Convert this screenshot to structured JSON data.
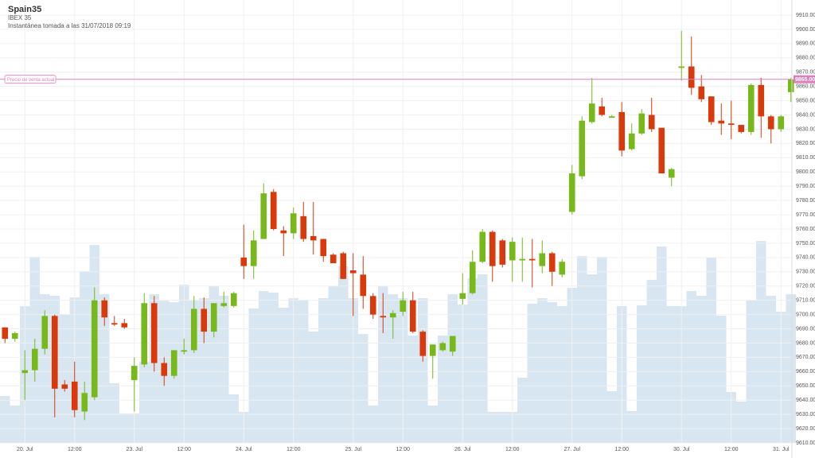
{
  "chart_data": {
    "type": "candlestick",
    "title": "Spain35",
    "subtitle": "IBEX 35",
    "note": "Instantánea tomada a las 31/07/2018 09:19",
    "categories": [
      null,
      null,
      "20. Jul",
      null,
      null,
      null,
      null,
      "12:00",
      null,
      null,
      null,
      null,
      null,
      "23. Jul",
      null,
      null,
      null,
      null,
      "12:00",
      null,
      null,
      null,
      null,
      null,
      "24. Jul",
      null,
      null,
      null,
      null,
      "12:00",
      null,
      null,
      null,
      null,
      null,
      "25. Jul",
      null,
      null,
      null,
      null,
      "12:00",
      null,
      null,
      null,
      null,
      null,
      "26. Jul",
      null,
      null,
      null,
      null,
      "12:00",
      null,
      null,
      null,
      null,
      null,
      "27. Jul",
      null,
      null,
      null,
      null,
      "12:00",
      null,
      null,
      null,
      null,
      null,
      "30. Jul",
      null,
      null,
      null,
      null,
      "12:00",
      null,
      null,
      null,
      null,
      "31. Jul",
      null
    ],
    "open": [
      9691,
      9683,
      9659,
      9661,
      9676,
      9699,
      9651,
      9653,
      9632,
      9642,
      9710,
      9694,
      9694,
      9654,
      9665,
      9708,
      9666,
      9657,
      9674,
      9675,
      9704,
      9688,
      9706,
      9706,
      9740,
      9734,
      9753,
      9786,
      9759,
      9757,
      9769,
      9755,
      9753,
      9742,
      9743,
      9731,
      9728,
      9713,
      9699,
      9698,
      9702,
      9710,
      9688,
      9671,
      9675,
      9674,
      9711,
      9715,
      9737,
      9758,
      9752,
      9738,
      9738,
      9739,
      9734,
      9743,
      9728,
      9772,
      9797,
      9835,
      9846,
      9838,
      9842,
      9816,
      9827,
      9840,
      9831,
      9796,
      9873,
      9874,
      9860,
      9853,
      9836,
      9834,
      9833,
      9828,
      9861,
      9839,
      9830,
      9856
    ],
    "high": [
      9691,
      9688,
      9675,
      9683,
      9703,
      9700,
      9654,
      9667,
      9653,
      9719,
      9712,
      9699,
      9697,
      9670,
      9715,
      9713,
      9670,
      9675,
      9683,
      9713,
      9712,
      9708,
      9716,
      9716,
      9763,
      9759,
      9792,
      9788,
      9762,
      9775,
      9779,
      9779,
      9753,
      9743,
      9744,
      9743,
      9741,
      9715,
      9715,
      9703,
      9716,
      9716,
      9689,
      9679,
      9681,
      9685,
      9729,
      9745,
      9760,
      9759,
      9753,
      9754,
      9754,
      9753,
      9752,
      9744,
      9739,
      9805,
      9839,
      9866,
      9852,
      9840,
      9849,
      9834,
      9844,
      9852,
      9831,
      9803,
      9899,
      9895,
      9868,
      9853,
      9848,
      9850,
      9833,
      9862,
      9866,
      9840,
      9840,
      9866
    ],
    "low": [
      9680,
      9681,
      9640,
      9653,
      9672,
      9628,
      9646,
      9628,
      9626,
      9640,
      9692,
      9692,
      9690,
      9632,
      9663,
      9660,
      9650,
      9655,
      9672,
      9673,
      9680,
      9684,
      9705,
      9705,
      9725,
      9725,
      9753,
      9759,
      9741,
      9753,
      9751,
      9742,
      9737,
      9736,
      9725,
      9699,
      9704,
      9697,
      9687,
      9683,
      9699,
      9687,
      9667,
      9655,
      9674,
      9671,
      9707,
      9714,
      9736,
      9723,
      9733,
      9723,
      9723,
      9719,
      9729,
      9720,
      9726,
      9770,
      9795,
      9834,
      9839,
      9838,
      9811,
      9815,
      9826,
      9828,
      9799,
      9790,
      9864,
      9854,
      9849,
      9833,
      9826,
      9823,
      9827,
      9826,
      9824,
      9820,
      9828,
      9849
    ],
    "close": [
      9683,
      9687,
      9661,
      9676,
      9699,
      9648,
      9648,
      9633,
      9645,
      9710,
      9698,
      9693,
      9691,
      9664,
      9708,
      9666,
      9657,
      9675,
      9675,
      9704,
      9688,
      9708,
      9708,
      9715,
      9734,
      9752,
      9785,
      9760,
      9757,
      9771,
      9753,
      9752,
      9741,
      9736,
      9725,
      9729,
      9713,
      9700,
      9698,
      9701,
      9710,
      9688,
      9671,
      9679,
      9680,
      9685,
      9715,
      9737,
      9758,
      9734,
      9735,
      9751,
      9739,
      9738,
      9743,
      9730,
      9737,
      9799,
      9836,
      9848,
      9840,
      9839,
      9815,
      9827,
      9841,
      9830,
      9799,
      9802,
      9874,
      9859,
      9851,
      9835,
      9834,
      9833,
      9828,
      9861,
      9839,
      9830,
      9839,
      9865
    ],
    "volume": [
      59,
      47,
      172,
      234,
      187,
      185,
      162,
      183,
      216,
      249,
      187,
      75,
      37,
      37,
      102,
      187,
      179,
      177,
      199,
      179,
      182,
      197,
      185,
      61,
      39,
      169,
      191,
      189,
      170,
      182,
      180,
      140,
      182,
      197,
      222,
      182,
      137,
      47,
      197,
      187,
      182,
      135,
      182,
      47,
      135,
      187,
      174,
      207,
      212,
      39,
      39,
      39,
      82,
      175,
      182,
      177,
      172,
      195,
      235,
      212,
      234,
      65,
      172,
      40,
      173,
      205,
      247,
      172,
      172,
      191,
      185,
      233,
      160,
      64,
      52,
      179,
      254,
      185,
      165,
      187
    ],
    "up_color": "#77b81b",
    "down_color": "#d9390b",
    "volume_color": "#d8e6f1",
    "current_price": {
      "label": "Precio de venta actual",
      "value": 9865,
      "value_label": "9865.00",
      "color": "#e07dbf"
    },
    "ylim": [
      9610,
      9910
    ],
    "yticks": [
      {
        "value": 9610,
        "label": "9610.00"
      },
      {
        "value": 9620,
        "label": "9620.00"
      },
      {
        "value": 9630,
        "label": "9630.00"
      },
      {
        "value": 9640,
        "label": "9640.00"
      },
      {
        "value": 9650,
        "label": "9650.00"
      },
      {
        "value": 9660,
        "label": "9660.00"
      },
      {
        "value": 9670,
        "label": "9670.00"
      },
      {
        "value": 9680,
        "label": "9680.00"
      },
      {
        "value": 9690,
        "label": "9690.00"
      },
      {
        "value": 9700,
        "label": "9700.00"
      },
      {
        "value": 9710,
        "label": "9710.00"
      },
      {
        "value": 9720,
        "label": "9720.00"
      },
      {
        "value": 9730,
        "label": "9730.00"
      },
      {
        "value": 9740,
        "label": "9740.00"
      },
      {
        "value": 9750,
        "label": "9750.00"
      },
      {
        "value": 9760,
        "label": "9760.00"
      },
      {
        "value": 9770,
        "label": "9770.00"
      },
      {
        "value": 9780,
        "label": "9780.00"
      },
      {
        "value": 9790,
        "label": "9790.00"
      },
      {
        "value": 9800,
        "label": "9800.00"
      },
      {
        "value": 9810,
        "label": "9810.00"
      },
      {
        "value": 9820,
        "label": "9820.00"
      },
      {
        "value": 9830,
        "label": "9830.00"
      },
      {
        "value": 9840,
        "label": "9840.00"
      },
      {
        "value": 9850,
        "label": "9850.00"
      },
      {
        "value": 9860,
        "label": "9860.00"
      },
      {
        "value": 9870,
        "label": "9870.00"
      },
      {
        "value": 9880,
        "label": "9880.00"
      },
      {
        "value": 9890,
        "label": "9890.00"
      },
      {
        "value": 9900,
        "label": "9900.00"
      },
      {
        "value": 9910,
        "label": "9910.00"
      }
    ],
    "grid": true
  }
}
